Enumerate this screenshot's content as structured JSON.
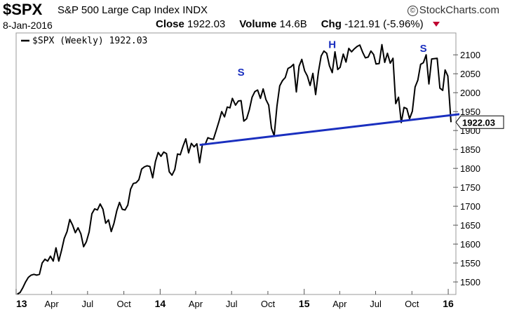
{
  "header": {
    "symbol": "$SPX",
    "name": "S&P 500 Large Cap Index",
    "exchange": "INDX",
    "brand": "StockCharts.com",
    "date": "8-Jan-2016",
    "close_label": "Close",
    "close_value": "1922.03",
    "volume_label": "Volume",
    "volume_value": "14.6B",
    "chg_label": "Chg",
    "chg_value": "-121.91 (-5.96%)"
  },
  "colors": {
    "price_line": "#000000",
    "trend_line": "#1a2fbf",
    "annotation": "#1a2fbf",
    "down": "#c00030"
  },
  "chart_data": {
    "type": "line",
    "title": "$SPX S&P 500 Large Cap Index INDX",
    "legend": "$SPX (Weekly) 1922.03",
    "legend_position": "top-left",
    "y_axis_side": "right",
    "grid": false,
    "ylim": [
      1465,
      2130
    ],
    "y_ticks": [
      1500,
      1550,
      1600,
      1650,
      1700,
      1750,
      1800,
      1850,
      1900,
      1950,
      2000,
      2050,
      2100
    ],
    "y_tick_labels": [
      "1500",
      "1550",
      "1600",
      "1650",
      "1700",
      "1750",
      "1800",
      "1850",
      "1900",
      "1950",
      "2000",
      "2050",
      "2100"
    ],
    "x_tick_labels": [
      "13",
      "Apr",
      "Jul",
      "Oct",
      "14",
      "Apr",
      "Jul",
      "Oct",
      "15",
      "Apr",
      "Jul",
      "Oct",
      "16"
    ],
    "x_tick_dates": [
      "2013-01-01",
      "2013-04-01",
      "2013-07-01",
      "2013-10-01",
      "2014-01-01",
      "2014-04-01",
      "2014-07-01",
      "2014-10-01",
      "2015-01-01",
      "2015-04-01",
      "2015-07-01",
      "2015-10-01",
      "2016-01-01"
    ],
    "major_x_labels": [
      "13",
      "14",
      "15",
      "16"
    ],
    "last_value_label": "1922.03",
    "series": [
      {
        "name": "$SPX (Weekly)",
        "x": [
          "2013-01-04",
          "2013-01-11",
          "2013-01-18",
          "2013-01-25",
          "2013-02-01",
          "2013-02-08",
          "2013-02-15",
          "2013-02-22",
          "2013-03-01",
          "2013-03-08",
          "2013-03-15",
          "2013-03-22",
          "2013-03-29",
          "2013-04-05",
          "2013-04-12",
          "2013-04-19",
          "2013-04-26",
          "2013-05-03",
          "2013-05-10",
          "2013-05-17",
          "2013-05-24",
          "2013-05-31",
          "2013-06-07",
          "2013-06-14",
          "2013-06-21",
          "2013-06-28",
          "2013-07-05",
          "2013-07-12",
          "2013-07-19",
          "2013-07-26",
          "2013-08-02",
          "2013-08-09",
          "2013-08-16",
          "2013-08-23",
          "2013-08-30",
          "2013-09-06",
          "2013-09-13",
          "2013-09-20",
          "2013-09-27",
          "2013-10-04",
          "2013-10-11",
          "2013-10-18",
          "2013-10-25",
          "2013-11-01",
          "2013-11-08",
          "2013-11-15",
          "2013-11-22",
          "2013-11-29",
          "2013-12-06",
          "2013-12-13",
          "2013-12-20",
          "2013-12-27",
          "2014-01-03",
          "2014-01-10",
          "2014-01-17",
          "2014-01-24",
          "2014-01-31",
          "2014-02-07",
          "2014-02-14",
          "2014-02-21",
          "2014-02-28",
          "2014-03-07",
          "2014-03-14",
          "2014-03-21",
          "2014-03-28",
          "2014-04-04",
          "2014-04-11",
          "2014-04-18",
          "2014-04-25",
          "2014-05-02",
          "2014-05-09",
          "2014-05-16",
          "2014-05-23",
          "2014-05-30",
          "2014-06-06",
          "2014-06-13",
          "2014-06-20",
          "2014-06-27",
          "2014-07-03",
          "2014-07-11",
          "2014-07-18",
          "2014-07-25",
          "2014-08-01",
          "2014-08-08",
          "2014-08-15",
          "2014-08-22",
          "2014-08-29",
          "2014-09-05",
          "2014-09-12",
          "2014-09-19",
          "2014-09-26",
          "2014-10-03",
          "2014-10-10",
          "2014-10-17",
          "2014-10-24",
          "2014-10-31",
          "2014-11-07",
          "2014-11-14",
          "2014-11-21",
          "2014-11-28",
          "2014-12-05",
          "2014-12-12",
          "2014-12-19",
          "2014-12-26",
          "2015-01-02",
          "2015-01-09",
          "2015-01-16",
          "2015-01-23",
          "2015-01-30",
          "2015-02-06",
          "2015-02-13",
          "2015-02-20",
          "2015-02-27",
          "2015-03-06",
          "2015-03-13",
          "2015-03-20",
          "2015-03-27",
          "2015-04-02",
          "2015-04-10",
          "2015-04-17",
          "2015-04-24",
          "2015-05-01",
          "2015-05-08",
          "2015-05-15",
          "2015-05-22",
          "2015-05-29",
          "2015-06-05",
          "2015-06-12",
          "2015-06-19",
          "2015-06-26",
          "2015-07-02",
          "2015-07-10",
          "2015-07-17",
          "2015-07-24",
          "2015-07-31",
          "2015-08-07",
          "2015-08-14",
          "2015-08-21",
          "2015-08-28",
          "2015-09-04",
          "2015-09-11",
          "2015-09-18",
          "2015-09-25",
          "2015-10-02",
          "2015-10-09",
          "2015-10-16",
          "2015-10-23",
          "2015-10-30",
          "2015-11-06",
          "2015-11-13",
          "2015-11-20",
          "2015-11-27",
          "2015-12-04",
          "2015-12-11",
          "2015-12-18",
          "2015-12-24",
          "2015-12-31",
          "2016-01-08"
        ],
        "y": [
          1468,
          1472,
          1485,
          1500,
          1512,
          1518,
          1520,
          1518,
          1520,
          1550,
          1560,
          1555,
          1568,
          1555,
          1590,
          1555,
          1583,
          1615,
          1633,
          1665,
          1650,
          1630,
          1643,
          1627,
          1593,
          1606,
          1632,
          1680,
          1693,
          1690,
          1706,
          1692,
          1655,
          1664,
          1633,
          1655,
          1688,
          1710,
          1692,
          1690,
          1703,
          1745,
          1760,
          1762,
          1770,
          1798,
          1804,
          1807,
          1805,
          1775,
          1818,
          1842,
          1832,
          1843,
          1839,
          1791,
          1782,
          1797,
          1838,
          1836,
          1859,
          1878,
          1841,
          1866,
          1857,
          1865,
          1815,
          1864,
          1863,
          1881,
          1878,
          1877,
          1900,
          1924,
          1950,
          1936,
          1962,
          1960,
          1985,
          1967,
          1978,
          1979,
          1925,
          1931,
          1955,
          1988,
          2003,
          2007,
          1985,
          2010,
          1982,
          1967,
          1906,
          1886,
          1965,
          2018,
          2032,
          2040,
          2064,
          2068,
          2075,
          2002,
          2070,
          2088,
          2058,
          2044,
          2019,
          2051,
          1995,
          2055,
          2097,
          2110,
          2104,
          2071,
          2053,
          2108,
          2061,
          2067,
          2102,
          2081,
          2117,
          2108,
          2116,
          2122,
          2126,
          2107,
          2092,
          2094,
          2110,
          2101,
          2076,
          2077,
          2127,
          2080,
          2104,
          2078,
          2091,
          1971,
          1988,
          1921,
          1961,
          1958,
          1931,
          1951,
          2015,
          2033,
          2075,
          2079,
          2100,
          2023,
          2089,
          2090,
          2091,
          2012,
          2006,
          2060,
          2044,
          1922
        ]
      }
    ],
    "trendline": {
      "x": [
        "2014-04-11",
        "2016-01-08"
      ],
      "y": [
        1862,
        1942
      ]
    },
    "annotations": [
      {
        "text": "S",
        "x": "2014-07-25",
        "y": 2045
      },
      {
        "text": "H",
        "x": "2015-03-13",
        "y": 2118
      },
      {
        "text": "S",
        "x": "2015-10-30",
        "y": 2108
      }
    ]
  }
}
